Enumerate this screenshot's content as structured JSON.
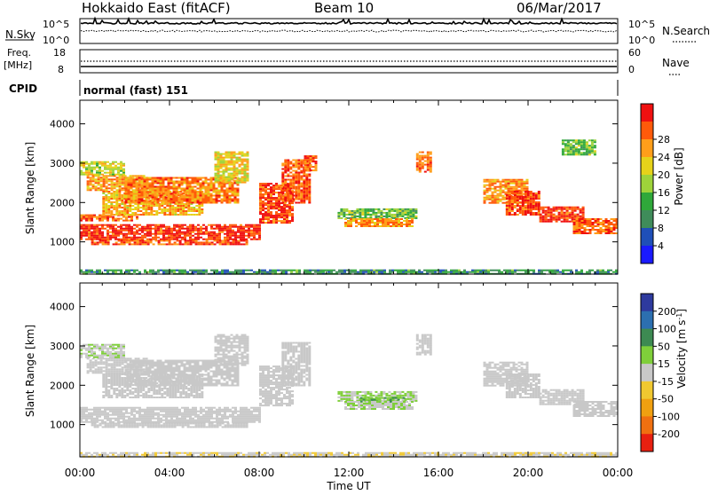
{
  "header": {
    "title": "Hokkaido East (fitACF)",
    "beam": "Beam 10",
    "date": "06/Mar/2017"
  },
  "colors": {
    "power": [
      "#1a1aff",
      "#1f4fb8",
      "#3f8c5a",
      "#2fa83a",
      "#9ed33a",
      "#e6d21a",
      "#ff9e1a",
      "#ff5a0a",
      "#f01010"
    ],
    "velocity": [
      "#2e3a9e",
      "#2c6fb0",
      "#3d8a52",
      "#7fcf3a",
      "#c8c8c8",
      "#f0c830",
      "#f0a010",
      "#f07010",
      "#e82010"
    ],
    "noise_line": "#000000"
  },
  "top_panels": {
    "nsky_label": "N.Sky",
    "nsky_top_tick": "10^5",
    "nsky_bottom_tick": "10^0",
    "nsearch_label": "N.Search",
    "nsearch_top_tick": "10^5",
    "nsearch_bottom_tick": "10^0",
    "freq_label": "Freq.",
    "freq_unit": "[MHz]",
    "freq_ticks": [
      "18",
      "8"
    ],
    "nave_label": "Nave",
    "nave_ticks": [
      "60",
      "0"
    ],
    "cpid_label": "CPID",
    "cpid_text": "normal (fast) 151"
  },
  "chart_data": [
    {
      "type": "heatmap",
      "name": "power",
      "xlabel": "",
      "ylabel": "Slant Range [km]",
      "xlim": [
        0,
        24
      ],
      "ylim": [
        180,
        4600
      ],
      "yticks": [
        "1000",
        "2000",
        "3000",
        "4000"
      ],
      "colorbar_label": "Power [dB]",
      "colorbar_range": [
        0,
        32
      ],
      "colorbar_ticks": [
        "4",
        "8",
        "12",
        "16",
        "20",
        "24",
        "28"
      ],
      "regions": [
        {
          "t": [
            0.0,
            8.0
          ],
          "r": [
            1050,
            1450
          ],
          "v": 29
        },
        {
          "t": [
            0.5,
            7.5
          ],
          "r": [
            950,
            1050
          ],
          "v": 27
        },
        {
          "t": [
            0.0,
            2.5
          ],
          "r": [
            1550,
            1700
          ],
          "v": 26
        },
        {
          "t": [
            0.3,
            3.0
          ],
          "r": [
            2300,
            2700
          ],
          "v": 23
        },
        {
          "t": [
            1.0,
            5.5
          ],
          "r": [
            1700,
            2300
          ],
          "v": 22
        },
        {
          "t": [
            2.0,
            7.0
          ],
          "r": [
            2000,
            2650
          ],
          "v": 25
        },
        {
          "t": [
            0.0,
            2.0
          ],
          "r": [
            2700,
            3050
          ],
          "v": 18
        },
        {
          "t": [
            6.0,
            7.5
          ],
          "r": [
            2500,
            3300
          ],
          "v": 20
        },
        {
          "t": [
            8.0,
            9.5
          ],
          "r": [
            1500,
            2500
          ],
          "v": 28
        },
        {
          "t": [
            9.0,
            10.3
          ],
          "r": [
            2000,
            3100
          ],
          "v": 27
        },
        {
          "t": [
            10.0,
            10.5
          ],
          "r": [
            2800,
            3200
          ],
          "v": 26
        },
        {
          "t": [
            11.5,
            15.0
          ],
          "r": [
            1600,
            1850
          ],
          "v": 14
        },
        {
          "t": [
            11.8,
            14.8
          ],
          "r": [
            1400,
            1600
          ],
          "v": 24
        },
        {
          "t": [
            15.0,
            15.6
          ],
          "r": [
            2800,
            3300
          ],
          "v": 26
        },
        {
          "t": [
            18.0,
            20.0
          ],
          "r": [
            2000,
            2600
          ],
          "v": 24
        },
        {
          "t": [
            19.0,
            20.5
          ],
          "r": [
            1700,
            2300
          ],
          "v": 28
        },
        {
          "t": [
            20.5,
            22.5
          ],
          "r": [
            1500,
            1900
          ],
          "v": 28
        },
        {
          "t": [
            22.0,
            24.0
          ],
          "r": [
            1200,
            1600
          ],
          "v": 26
        },
        {
          "t": [
            21.5,
            23.0
          ],
          "r": [
            3200,
            3600
          ],
          "v": 14
        },
        {
          "t": [
            0.0,
            24.0
          ],
          "r": [
            180,
            300
          ],
          "v": 10
        }
      ]
    },
    {
      "type": "heatmap",
      "name": "velocity",
      "xlabel": "Time UT",
      "ylabel": "Slant Range [km]",
      "xlim": [
        0,
        24
      ],
      "ylim": [
        180,
        4600
      ],
      "xticks": [
        "00:00",
        "04:00",
        "08:00",
        "12:00",
        "16:00",
        "20:00",
        "00:00"
      ],
      "yticks": [
        "1000",
        "2000",
        "3000",
        "4000"
      ],
      "colorbar_label": "Velocity [m s^-1]",
      "colorbar_range": [
        -250,
        250
      ],
      "colorbar_ticks": [
        "200",
        "100",
        "50",
        "15",
        "-15",
        "-50",
        "-100",
        "-200"
      ],
      "regions": [
        {
          "t": [
            0.0,
            8.0
          ],
          "r": [
            1050,
            1450
          ],
          "v": 0
        },
        {
          "t": [
            0.5,
            7.5
          ],
          "r": [
            950,
            1050
          ],
          "v": 0
        },
        {
          "t": [
            0.3,
            3.0
          ],
          "r": [
            2300,
            2700
          ],
          "v": 0
        },
        {
          "t": [
            1.0,
            5.5
          ],
          "r": [
            1700,
            2300
          ],
          "v": 0
        },
        {
          "t": [
            2.0,
            7.0
          ],
          "r": [
            2000,
            2650
          ],
          "v": 0
        },
        {
          "t": [
            0.0,
            2.0
          ],
          "r": [
            2700,
            3050
          ],
          "v": 20
        },
        {
          "t": [
            6.0,
            7.5
          ],
          "r": [
            2500,
            3300
          ],
          "v": 0
        },
        {
          "t": [
            8.0,
            9.5
          ],
          "r": [
            1500,
            2500
          ],
          "v": 0
        },
        {
          "t": [
            9.0,
            10.3
          ],
          "r": [
            2000,
            3100
          ],
          "v": 0
        },
        {
          "t": [
            11.5,
            15.0
          ],
          "r": [
            1600,
            1850
          ],
          "v": 30
        },
        {
          "t": [
            12.5,
            14.5
          ],
          "r": [
            1500,
            1700
          ],
          "v": 80
        },
        {
          "t": [
            11.8,
            14.8
          ],
          "r": [
            1400,
            1600
          ],
          "v": 20
        },
        {
          "t": [
            15.0,
            15.6
          ],
          "r": [
            2800,
            3300
          ],
          "v": 0
        },
        {
          "t": [
            18.0,
            20.0
          ],
          "r": [
            2000,
            2600
          ],
          "v": 0
        },
        {
          "t": [
            19.0,
            20.5
          ],
          "r": [
            1700,
            2300
          ],
          "v": 0
        },
        {
          "t": [
            20.5,
            22.5
          ],
          "r": [
            1500,
            1900
          ],
          "v": 0
        },
        {
          "t": [
            22.0,
            24.0
          ],
          "r": [
            1200,
            1600
          ],
          "v": 0
        },
        {
          "t": [
            0.0,
            24.0
          ],
          "r": [
            180,
            300
          ],
          "v": -20
        }
      ]
    }
  ]
}
